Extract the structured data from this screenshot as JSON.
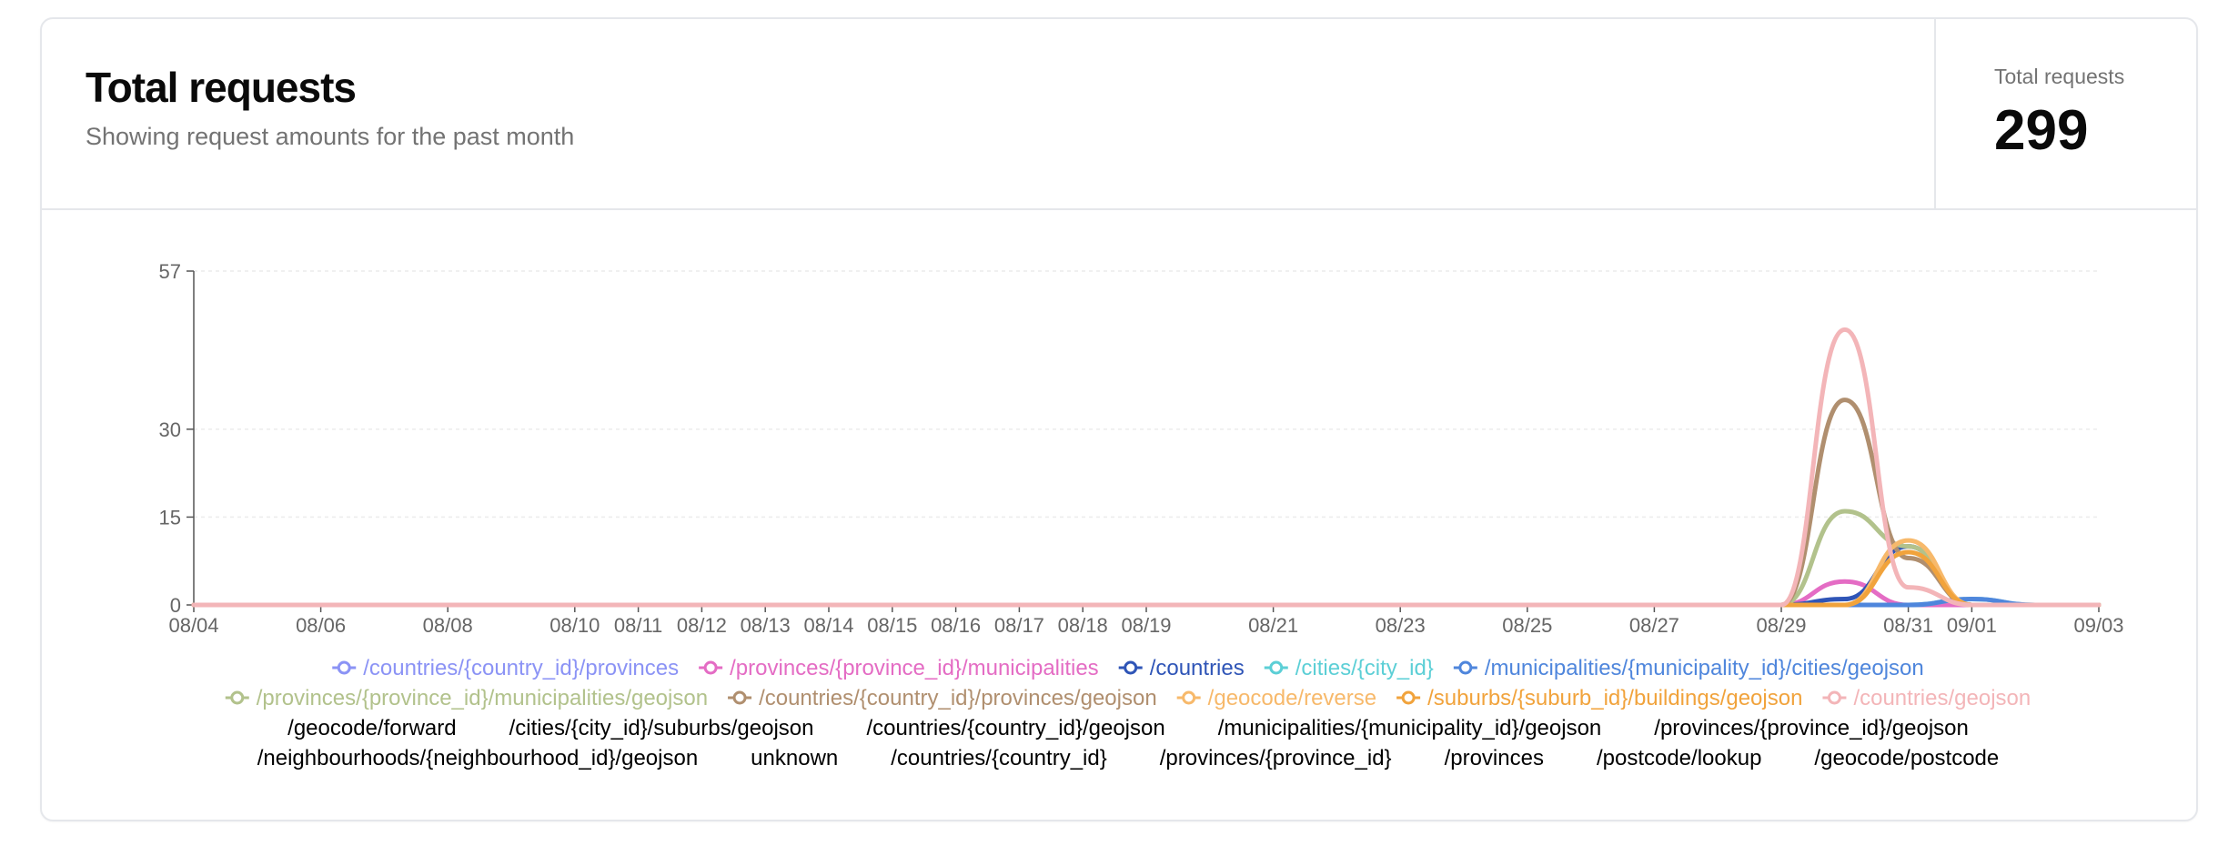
{
  "header": {
    "title": "Total requests",
    "subtitle": "Showing request amounts for the past month"
  },
  "stat": {
    "label": "Total requests",
    "value": "299"
  },
  "chart_data": {
    "type": "line",
    "curve": "smooth",
    "grid": "dashed horizontal",
    "legend": "bottom",
    "ylim": [
      0,
      57
    ],
    "yticks": [
      0,
      15,
      30,
      57
    ],
    "xlim": [
      "08/04",
      "09/03"
    ],
    "x": [
      "08/04",
      "08/05",
      "08/06",
      "08/07",
      "08/08",
      "08/09",
      "08/10",
      "08/11",
      "08/12",
      "08/13",
      "08/14",
      "08/15",
      "08/16",
      "08/17",
      "08/18",
      "08/19",
      "08/20",
      "08/21",
      "08/22",
      "08/23",
      "08/24",
      "08/25",
      "08/26",
      "08/27",
      "08/28",
      "08/29",
      "08/30",
      "08/31",
      "09/01",
      "09/02",
      "09/03"
    ],
    "xticks": [
      "08/04",
      "08/06",
      "08/08",
      "08/10",
      "08/11",
      "08/12",
      "08/13",
      "08/14",
      "08/15",
      "08/16",
      "08/17",
      "08/18",
      "08/19",
      "08/21",
      "08/23",
      "08/25",
      "08/27",
      "08/29",
      "08/31",
      "09/01",
      "09/03"
    ],
    "series": [
      {
        "name": "/countries/{country_id}/provinces",
        "color": "#8b93f5",
        "values": [
          0,
          0,
          0,
          0,
          0,
          0,
          0,
          0,
          0,
          0,
          0,
          0,
          0,
          0,
          0,
          0,
          0,
          0,
          0,
          0,
          0,
          0,
          0,
          0,
          0,
          0,
          0,
          0,
          0,
          0,
          0
        ]
      },
      {
        "name": "/provinces/{province_id}/municipalities",
        "color": "#e46cc4",
        "values": [
          0,
          0,
          0,
          0,
          0,
          0,
          0,
          0,
          0,
          0,
          0,
          0,
          0,
          0,
          0,
          0,
          0,
          0,
          0,
          0,
          0,
          0,
          0,
          0,
          0,
          0,
          4,
          0,
          0,
          0,
          0
        ]
      },
      {
        "name": "/countries",
        "color": "#2f55b7",
        "values": [
          0,
          0,
          0,
          0,
          0,
          0,
          0,
          0,
          0,
          0,
          0,
          0,
          0,
          0,
          0,
          0,
          0,
          0,
          0,
          0,
          0,
          0,
          0,
          0,
          0,
          0,
          1,
          10,
          0,
          0,
          0
        ]
      },
      {
        "name": "/cities/{city_id}",
        "color": "#5ccfd6",
        "values": [
          0,
          0,
          0,
          0,
          0,
          0,
          0,
          0,
          0,
          0,
          0,
          0,
          0,
          0,
          0,
          0,
          0,
          0,
          0,
          0,
          0,
          0,
          0,
          0,
          0,
          0,
          0,
          0,
          1,
          0,
          0
        ]
      },
      {
        "name": "/municipalities/{municipality_id}/cities/geojson",
        "color": "#4f86dc",
        "values": [
          0,
          0,
          0,
          0,
          0,
          0,
          0,
          0,
          0,
          0,
          0,
          0,
          0,
          0,
          0,
          0,
          0,
          0,
          0,
          0,
          0,
          0,
          0,
          0,
          0,
          0,
          0,
          0,
          1,
          0,
          0
        ]
      },
      {
        "name": "/provinces/{province_id}/municipalities/geojson",
        "color": "#b2c28c",
        "values": [
          0,
          0,
          0,
          0,
          0,
          0,
          0,
          0,
          0,
          0,
          0,
          0,
          0,
          0,
          0,
          0,
          0,
          0,
          0,
          0,
          0,
          0,
          0,
          0,
          0,
          0,
          16,
          10,
          0,
          0,
          0
        ]
      },
      {
        "name": "/countries/{country_id}/provinces/geojson",
        "color": "#b08f6f",
        "values": [
          0,
          0,
          0,
          0,
          0,
          0,
          0,
          0,
          0,
          0,
          0,
          0,
          0,
          0,
          0,
          0,
          0,
          0,
          0,
          0,
          0,
          0,
          0,
          0,
          0,
          0,
          35,
          8,
          0,
          0,
          0
        ]
      },
      {
        "name": "/geocode/reverse",
        "color": "#f7b96b",
        "values": [
          0,
          0,
          0,
          0,
          0,
          0,
          0,
          0,
          0,
          0,
          0,
          0,
          0,
          0,
          0,
          0,
          0,
          0,
          0,
          0,
          0,
          0,
          0,
          0,
          0,
          0,
          0,
          11,
          0,
          0,
          0
        ]
      },
      {
        "name": "/suburbs/{suburb_id}/buildings/geojson",
        "color": "#f1a33c",
        "values": [
          0,
          0,
          0,
          0,
          0,
          0,
          0,
          0,
          0,
          0,
          0,
          0,
          0,
          0,
          0,
          0,
          0,
          0,
          0,
          0,
          0,
          0,
          0,
          0,
          0,
          0,
          0,
          9,
          0,
          0,
          0
        ]
      },
      {
        "name": "/countries/geojson",
        "color": "#f3b5b8",
        "values": [
          0,
          0,
          0,
          0,
          0,
          0,
          0,
          0,
          0,
          0,
          0,
          0,
          0,
          0,
          0,
          0,
          0,
          0,
          0,
          0,
          0,
          0,
          0,
          0,
          0,
          0,
          47,
          3,
          0,
          0,
          0
        ]
      },
      {
        "name": "/geocode/forward",
        "color": "#000000"
      },
      {
        "name": "/cities/{city_id}/suburbs/geojson",
        "color": "#000000"
      },
      {
        "name": "/countries/{country_id}/geojson",
        "color": "#000000"
      },
      {
        "name": "/municipalities/{municipality_id}/geojson",
        "color": "#000000"
      },
      {
        "name": "/provinces/{province_id}/geojson",
        "color": "#000000"
      },
      {
        "name": "/neighbourhoods/{neighbourhood_id}/geojson",
        "color": "#000000"
      },
      {
        "name": "unknown",
        "color": "#000000"
      },
      {
        "name": "/countries/{country_id}",
        "color": "#000000"
      },
      {
        "name": "/provinces/{province_id}",
        "color": "#000000"
      },
      {
        "name": "/provinces",
        "color": "#000000"
      },
      {
        "name": "/postcode/lookup",
        "color": "#000000"
      },
      {
        "name": "/geocode/postcode",
        "color": "#000000"
      }
    ]
  }
}
